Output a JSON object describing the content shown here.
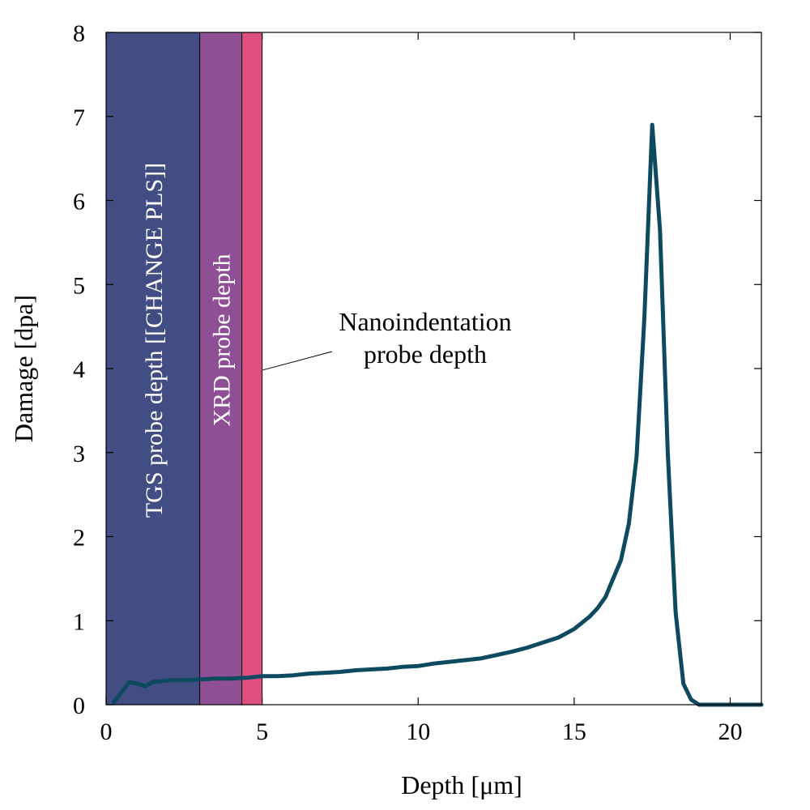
{
  "chart_data": {
    "type": "line",
    "xlabel": "Depth [μm]",
    "ylabel": "Damage [dpa]",
    "xlim": [
      0,
      21
    ],
    "ylim": [
      0,
      8
    ],
    "xticks": [
      0,
      5,
      10,
      15,
      20
    ],
    "yticks": [
      0,
      1,
      2,
      3,
      4,
      5,
      6,
      7,
      8
    ],
    "grid": false,
    "legend": "none",
    "bands": [
      {
        "label": "TGS probe depth [[CHANGE PLS]]",
        "x0": 0,
        "x1": 3.0,
        "color": "#424d84"
      },
      {
        "label": "XRD probe depth",
        "x0": 3.0,
        "x1": 4.35,
        "color": "#8f4f94"
      },
      {
        "label": "",
        "x0": 4.35,
        "x1": 5.0,
        "color": "#de4f80"
      }
    ],
    "annotation": {
      "lines": [
        "Nanoindentation",
        "probe depth"
      ],
      "points_to_x": 5.0,
      "points_to_y": 3.98
    },
    "series": [
      {
        "color": "#0d4a60",
        "x": [
          0.25,
          0.5,
          0.75,
          1.0,
          1.25,
          1.5,
          1.75,
          2.0,
          2.5,
          3.0,
          3.5,
          4.0,
          4.5,
          5.0,
          5.5,
          6.0,
          6.5,
          7.0,
          7.5,
          8.0,
          8.5,
          9.0,
          9.5,
          10.0,
          10.5,
          11.0,
          11.5,
          12.0,
          12.5,
          13.0,
          13.5,
          14.0,
          14.5,
          15.0,
          15.5,
          15.75,
          16.0,
          16.25,
          16.5,
          16.75,
          17.0,
          17.25,
          17.5,
          17.75,
          18.0,
          18.25,
          18.5,
          18.75,
          19.0,
          19.5,
          20.0,
          20.5,
          21.0
        ],
        "y": [
          0.03,
          0.15,
          0.27,
          0.25,
          0.22,
          0.27,
          0.28,
          0.29,
          0.29,
          0.3,
          0.31,
          0.31,
          0.32,
          0.34,
          0.34,
          0.35,
          0.37,
          0.38,
          0.39,
          0.41,
          0.42,
          0.43,
          0.45,
          0.46,
          0.49,
          0.51,
          0.53,
          0.55,
          0.59,
          0.63,
          0.68,
          0.74,
          0.8,
          0.9,
          1.05,
          1.15,
          1.28,
          1.5,
          1.72,
          2.15,
          2.95,
          4.6,
          6.9,
          5.65,
          3.0,
          1.1,
          0.25,
          0.06,
          0.0,
          0.0,
          0.0,
          0.0,
          0.0
        ]
      }
    ]
  }
}
